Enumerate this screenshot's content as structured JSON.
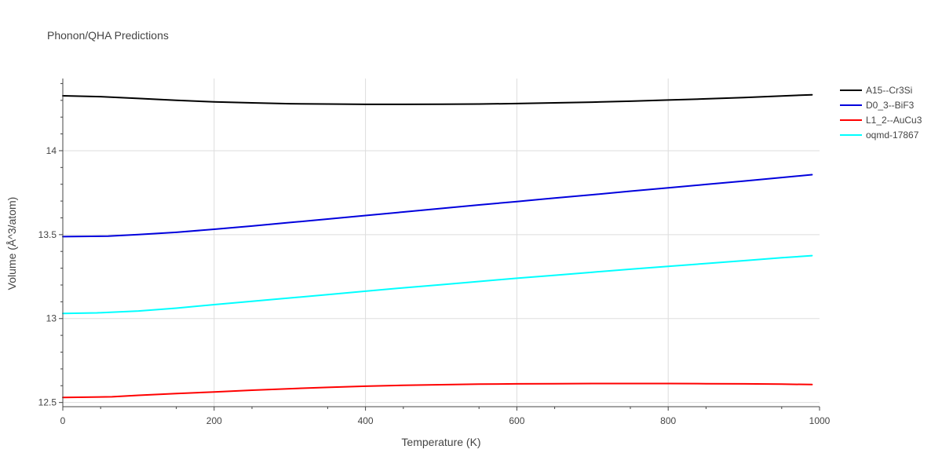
{
  "chart_data": {
    "type": "line",
    "title": "Phonon/QHA Predictions",
    "xlabel": "Temperature (K)",
    "ylabel": "Volume (Å^3/atom)",
    "xlim": [
      0,
      1000
    ],
    "ylim": [
      12.475,
      14.43
    ],
    "xticks": [
      0,
      200,
      400,
      600,
      800,
      1000
    ],
    "xtick_labels": [
      "0",
      "200",
      "400",
      "600",
      "800",
      "1000"
    ],
    "yticks": [
      12.5,
      13,
      13.5,
      14
    ],
    "ytick_labels": [
      "12.5",
      "13",
      "13.5",
      "14"
    ],
    "grid": true,
    "legend_position": "top-right",
    "series": [
      {
        "name": "A15--Cr3Si",
        "color": "#000000",
        "x": [
          0,
          50,
          100,
          150,
          200,
          250,
          300,
          350,
          400,
          450,
          500,
          550,
          600,
          650,
          700,
          750,
          800,
          850,
          900,
          950,
          990
        ],
        "y": [
          14.327,
          14.322,
          14.311,
          14.3,
          14.291,
          14.285,
          14.28,
          14.278,
          14.276,
          14.276,
          14.277,
          14.278,
          14.281,
          14.285,
          14.289,
          14.295,
          14.302,
          14.309,
          14.317,
          14.326,
          14.333
        ]
      },
      {
        "name": "D0_3--BiF3",
        "color": "#0000dd",
        "x": [
          0,
          60,
          100,
          150,
          200,
          250,
          300,
          350,
          400,
          450,
          500,
          550,
          600,
          650,
          700,
          750,
          800,
          850,
          900,
          950,
          990
        ],
        "y": [
          13.488,
          13.491,
          13.5,
          13.514,
          13.532,
          13.551,
          13.572,
          13.593,
          13.614,
          13.635,
          13.656,
          13.677,
          13.697,
          13.718,
          13.738,
          13.759,
          13.779,
          13.799,
          13.819,
          13.84,
          13.857
        ]
      },
      {
        "name": "L1_2--AuCu3",
        "color": "#ff0000",
        "x": [
          0,
          65,
          100,
          150,
          200,
          250,
          300,
          350,
          400,
          450,
          500,
          550,
          600,
          650,
          700,
          750,
          800,
          850,
          900,
          950,
          990
        ],
        "y": [
          12.53,
          12.534,
          12.543,
          12.553,
          12.563,
          12.573,
          12.582,
          12.59,
          12.597,
          12.602,
          12.606,
          12.609,
          12.611,
          12.612,
          12.613,
          12.613,
          12.613,
          12.612,
          12.611,
          12.609,
          12.607
        ]
      },
      {
        "name": "oqmd-17867",
        "color": "#00ffff",
        "x": [
          0,
          45,
          100,
          150,
          200,
          250,
          300,
          350,
          400,
          450,
          500,
          550,
          600,
          650,
          700,
          750,
          800,
          850,
          900,
          950,
          990
        ],
        "y": [
          13.03,
          13.034,
          13.045,
          13.062,
          13.083,
          13.103,
          13.123,
          13.143,
          13.163,
          13.183,
          13.202,
          13.221,
          13.24,
          13.258,
          13.276,
          13.294,
          13.311,
          13.328,
          13.345,
          13.362,
          13.375
        ]
      }
    ]
  }
}
